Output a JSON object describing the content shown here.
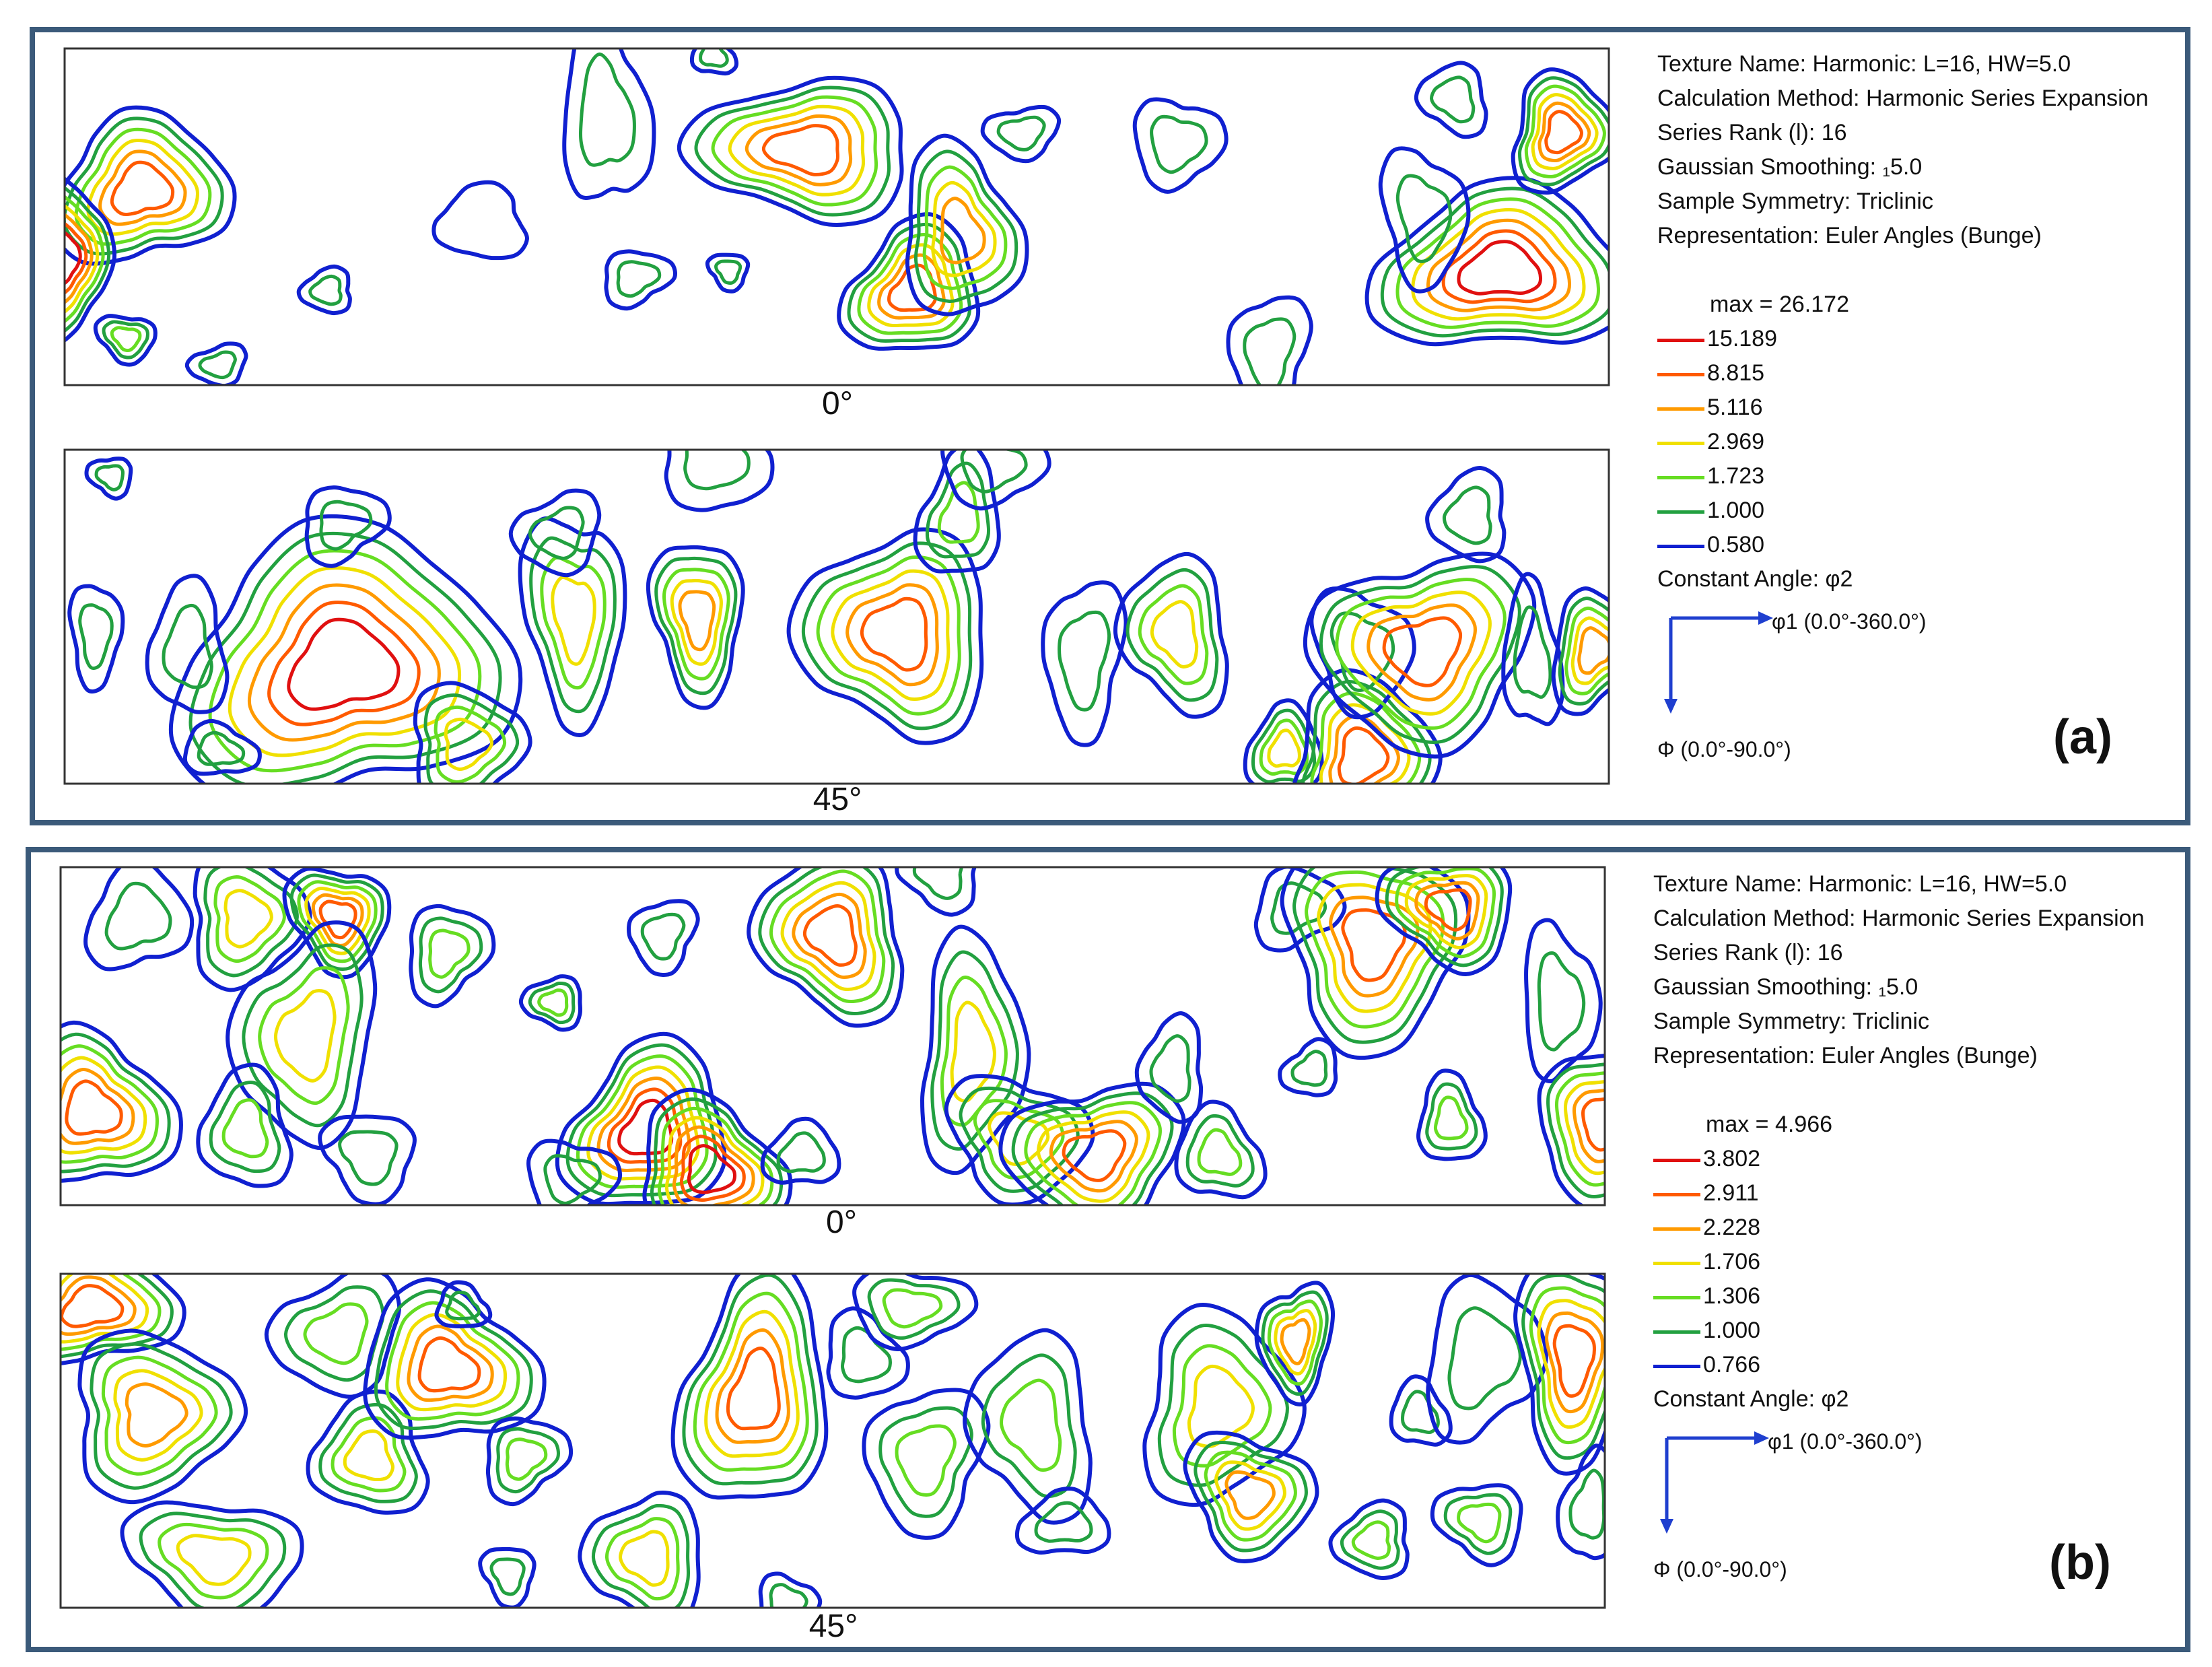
{
  "colors": {
    "frame": "#3b5a7a",
    "map_border": "#333333",
    "axis_arrow": "#1f3fcf",
    "levels_order": [
      "red",
      "orange-red",
      "orange",
      "yellow",
      "light-green",
      "green",
      "blue"
    ],
    "level_colors": [
      "#e01010",
      "#ff5a00",
      "#ff9a00",
      "#f0e000",
      "#66dd22",
      "#22a040",
      "#1020d0"
    ]
  },
  "panels": [
    {
      "letter": "(a)",
      "info": {
        "texture_name": "Texture Name: Harmonic: L=16, HW=5.0",
        "calculation_method": "Calculation Method: Harmonic Series Expansion",
        "series_rank": "Series Rank (l): 16",
        "gaussian_smoothing": "Gaussian Smoothing: ₁5.0",
        "sample_symmetry": "Sample Symmetry: Triclinic",
        "representation": "Representation: Euler Angles (Bunge)"
      },
      "max_label": "max = 26.172",
      "levels": [
        "15.189",
        "8.815",
        "5.116",
        "2.969",
        "1.723",
        "1.000",
        "0.580"
      ],
      "constant_angle": "Constant Angle: φ2",
      "phi1_label": "φ1 (0.0°-360.0°)",
      "Phi_label": "Φ (0.0°-90.0°)",
      "sections": [
        "0°",
        "45°"
      ]
    },
    {
      "letter": "(b)",
      "info": {
        "texture_name": "Texture Name: Harmonic: L=16, HW=5.0",
        "calculation_method": "Calculation Method: Harmonic Series Expansion",
        "series_rank": "Series Rank (l): 16",
        "gaussian_smoothing": "Gaussian Smoothing: ₁5.0",
        "sample_symmetry": "Sample Symmetry: Triclinic",
        "representation": "Representation: Euler Angles (Bunge)"
      },
      "max_label": "max = 4.966",
      "levels": [
        "3.802",
        "2.911",
        "2.228",
        "1.706",
        "1.306",
        "1.000",
        "0.766"
      ],
      "constant_angle": "Constant Angle: φ2",
      "phi1_label": "φ1 (0.0°-360.0°)",
      "Phi_label": "Φ (0.0°-90.0°)",
      "sections": [
        "0°",
        "45°"
      ]
    }
  ]
}
